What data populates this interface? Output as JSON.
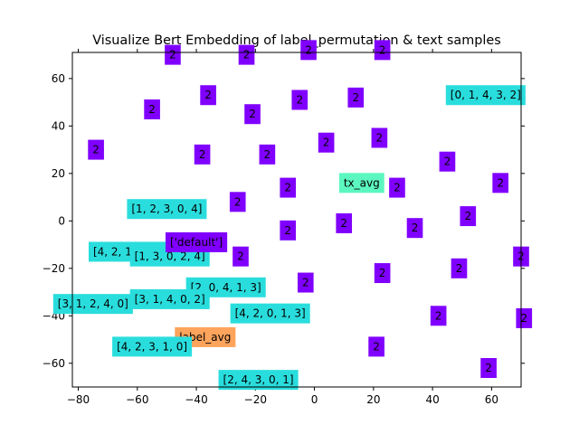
{
  "chart_data": {
    "type": "scatter",
    "title": "Visualize Bert Embedding of label_permutation & text samples",
    "xlabel": "",
    "ylabel": "",
    "xlim": [
      -82,
      70
    ],
    "ylim": [
      -70,
      71
    ],
    "xticks": [
      -80,
      -60,
      -40,
      -20,
      0,
      20,
      40,
      60
    ],
    "yticks": [
      -60,
      -40,
      -20,
      0,
      20,
      40,
      60
    ],
    "grid": false,
    "colors": {
      "text_sample": "#8000ff",
      "permutation": "#2adddd",
      "tx_avg": "#5cf7c0",
      "label_avg": "#ffa45c"
    },
    "points": [
      {
        "x": -48,
        "y": 70,
        "label": "2",
        "kind": "text_sample"
      },
      {
        "x": -23,
        "y": 70,
        "label": "2",
        "kind": "text_sample"
      },
      {
        "x": -2,
        "y": 72,
        "label": "2",
        "kind": "text_sample"
      },
      {
        "x": 23,
        "y": 72,
        "label": "2",
        "kind": "text_sample"
      },
      {
        "x": -36,
        "y": 53,
        "label": "2",
        "kind": "text_sample"
      },
      {
        "x": -55,
        "y": 47,
        "label": "2",
        "kind": "text_sample"
      },
      {
        "x": -21,
        "y": 45,
        "label": "2",
        "kind": "text_sample"
      },
      {
        "x": -5,
        "y": 51,
        "label": "2",
        "kind": "text_sample"
      },
      {
        "x": 14,
        "y": 52,
        "label": "2",
        "kind": "text_sample"
      },
      {
        "x": 4,
        "y": 33,
        "label": "2",
        "kind": "text_sample"
      },
      {
        "x": 22,
        "y": 35,
        "label": "2",
        "kind": "text_sample"
      },
      {
        "x": -74,
        "y": 30,
        "label": "2",
        "kind": "text_sample"
      },
      {
        "x": -38,
        "y": 28,
        "label": "2",
        "kind": "text_sample"
      },
      {
        "x": -16,
        "y": 28,
        "label": "2",
        "kind": "text_sample"
      },
      {
        "x": 45,
        "y": 25,
        "label": "2",
        "kind": "text_sample"
      },
      {
        "x": -9,
        "y": 14,
        "label": "2",
        "kind": "text_sample"
      },
      {
        "x": 28,
        "y": 14,
        "label": "2",
        "kind": "text_sample"
      },
      {
        "x": 63,
        "y": 16,
        "label": "2",
        "kind": "text_sample"
      },
      {
        "x": -26,
        "y": 8,
        "label": "2",
        "kind": "text_sample"
      },
      {
        "x": 52,
        "y": 2,
        "label": "2",
        "kind": "text_sample"
      },
      {
        "x": 10,
        "y": -1,
        "label": "2",
        "kind": "text_sample"
      },
      {
        "x": 34,
        "y": -3,
        "label": "2",
        "kind": "text_sample"
      },
      {
        "x": -9,
        "y": -4,
        "label": "2",
        "kind": "text_sample"
      },
      {
        "x": -25,
        "y": -15,
        "label": "2",
        "kind": "text_sample"
      },
      {
        "x": 70,
        "y": -15,
        "label": "2",
        "kind": "text_sample"
      },
      {
        "x": 49,
        "y": -20,
        "label": "2",
        "kind": "text_sample"
      },
      {
        "x": 23,
        "y": -22,
        "label": "2",
        "kind": "text_sample"
      },
      {
        "x": -3,
        "y": -26,
        "label": "2",
        "kind": "text_sample"
      },
      {
        "x": 42,
        "y": -40,
        "label": "2",
        "kind": "text_sample"
      },
      {
        "x": 71,
        "y": -41,
        "label": "2",
        "kind": "text_sample"
      },
      {
        "x": 21,
        "y": -53,
        "label": "2",
        "kind": "text_sample"
      },
      {
        "x": 59,
        "y": -62,
        "label": "2",
        "kind": "text_sample"
      },
      {
        "x": 58,
        "y": 53,
        "label": "[0, 1, 4, 3, 2]",
        "kind": "permutation"
      },
      {
        "x": -50,
        "y": 5,
        "label": "[1, 2, 3, 0, 4]",
        "kind": "permutation"
      },
      {
        "x": -63,
        "y": -13,
        "label": "[4, 2, 1, 0, 3]",
        "kind": "permutation"
      },
      {
        "x": -49,
        "y": -15,
        "label": "[1, 3, 0, 2, 4]",
        "kind": "permutation"
      },
      {
        "x": -40,
        "y": -9,
        "label": "['default']",
        "kind": "text_sample"
      },
      {
        "x": -30,
        "y": -28,
        "label": "[2, 0, 4, 1, 3]",
        "kind": "permutation"
      },
      {
        "x": -49,
        "y": -33,
        "label": "[3, 1, 4, 0, 2]",
        "kind": "permutation"
      },
      {
        "x": -75,
        "y": -35,
        "label": "[3, 1, 2, 4, 0]",
        "kind": "permutation"
      },
      {
        "x": -15,
        "y": -39,
        "label": "[4, 2, 0, 1, 3]",
        "kind": "permutation"
      },
      {
        "x": -37,
        "y": -49,
        "label": "label_avg",
        "kind": "label_avg"
      },
      {
        "x": -55,
        "y": -53,
        "label": "[4, 2, 3, 1, 0]",
        "kind": "permutation"
      },
      {
        "x": 16,
        "y": 16,
        "label": "tx_avg",
        "kind": "tx_avg"
      },
      {
        "x": -19,
        "y": -67,
        "label": "[2, 4, 3, 0, 1]",
        "kind": "permutation"
      }
    ]
  }
}
